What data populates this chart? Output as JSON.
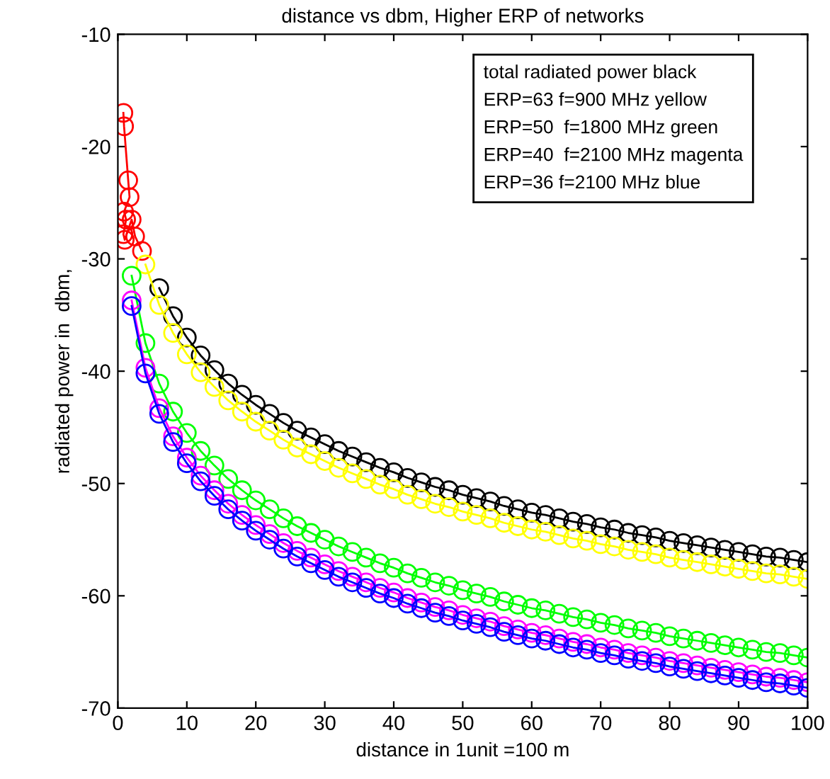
{
  "chart_data": {
    "type": "line",
    "title": "distance vs dbm, Higher ERP of networks",
    "xlabel": "distance in 1unit =100 m",
    "ylabel": "radiated power in  dbm,",
    "annotations": [
      "total radiated power black\nERP=63 f=900 MHz yellow\nERP=50  f=1800 MHz green\nERP=40  f=2100 MHz magenta\nERP=36 f=2100 MHz blue"
    ],
    "xlim": [
      0,
      100
    ],
    "ylim": [
      -70,
      -10
    ],
    "xticks": [
      0,
      10,
      20,
      30,
      40,
      50,
      60,
      70,
      80,
      90,
      100
    ],
    "yticks": [
      -70,
      -60,
      -50,
      -40,
      -30,
      -20,
      -10
    ],
    "marker": "circle",
    "line_style": "solid",
    "series": [
      {
        "color": "#ff0000",
        "x": [
          0.8,
          0.9,
          1.5,
          1.7,
          0.9,
          1.2,
          0.8,
          1.0,
          2.0,
          2.5,
          3.5
        ],
        "values": [
          -17,
          -18.2,
          -23,
          -24.5,
          -25.8,
          -26.5,
          -27.8,
          -28.3,
          -26.5,
          -28,
          -29.3
        ]
      },
      {
        "color": "#000000",
        "x": [
          6,
          8,
          10,
          12,
          14,
          16,
          18,
          20,
          22,
          24,
          26,
          28,
          30,
          32,
          34,
          36,
          38,
          40,
          42,
          44,
          46,
          48,
          50,
          52,
          54,
          56,
          58,
          60,
          62,
          64,
          66,
          68,
          70,
          72,
          74,
          76,
          78,
          80,
          82,
          84,
          86,
          88,
          90,
          92,
          94,
          96,
          98,
          100
        ],
        "values": [
          -32.6,
          -35.1,
          -37,
          -38.6,
          -39.9,
          -41.1,
          -42.1,
          -43,
          -43.8,
          -44.6,
          -45.3,
          -45.9,
          -46.5,
          -47.1,
          -47.6,
          -48.1,
          -48.6,
          -49,
          -49.5,
          -49.9,
          -50.3,
          -50.6,
          -51,
          -51.3,
          -51.6,
          -52,
          -52.3,
          -52.6,
          -52.8,
          -53.1,
          -53.4,
          -53.6,
          -53.9,
          -54.1,
          -54.4,
          -54.6,
          -54.8,
          -55.1,
          -55.3,
          -55.5,
          -55.7,
          -55.9,
          -56.1,
          -56.3,
          -56.5,
          -56.6,
          -56.8,
          -57
        ]
      },
      {
        "color": "#ffff00",
        "x": [
          4,
          6,
          8,
          10,
          12,
          14,
          16,
          18,
          20,
          22,
          24,
          26,
          28,
          30,
          32,
          34,
          36,
          38,
          40,
          42,
          44,
          46,
          48,
          50,
          52,
          54,
          56,
          58,
          60,
          62,
          64,
          66,
          68,
          70,
          72,
          74,
          76,
          78,
          80,
          82,
          84,
          86,
          88,
          90,
          92,
          94,
          96,
          98,
          100
        ],
        "values": [
          -30.5,
          -34.1,
          -36.6,
          -38.5,
          -40.1,
          -41.4,
          -42.6,
          -43.6,
          -44.5,
          -45.3,
          -46.1,
          -46.8,
          -47.4,
          -48,
          -48.6,
          -49.1,
          -49.6,
          -50.1,
          -50.5,
          -51,
          -51.4,
          -51.8,
          -52.1,
          -52.5,
          -52.8,
          -53.1,
          -53.5,
          -53.8,
          -54.1,
          -54.3,
          -54.6,
          -54.9,
          -55.1,
          -55.4,
          -55.6,
          -55.9,
          -56.1,
          -56.3,
          -56.6,
          -56.8,
          -57,
          -57.2,
          -57.4,
          -57.6,
          -57.8,
          -58,
          -58.1,
          -58.3,
          -58.5
        ]
      },
      {
        "color": "#00ff00",
        "x": [
          2,
          4,
          6,
          8,
          10,
          12,
          14,
          16,
          18,
          20,
          22,
          24,
          26,
          28,
          30,
          32,
          34,
          36,
          38,
          40,
          42,
          44,
          46,
          48,
          50,
          52,
          54,
          56,
          58,
          60,
          62,
          64,
          66,
          68,
          70,
          72,
          74,
          76,
          78,
          80,
          82,
          84,
          86,
          88,
          90,
          92,
          94,
          96,
          98,
          100
        ],
        "values": [
          -31.5,
          -37.5,
          -41.1,
          -43.6,
          -45.5,
          -47.1,
          -48.4,
          -49.6,
          -50.6,
          -51.5,
          -52.3,
          -53.1,
          -53.8,
          -54.4,
          -55,
          -55.6,
          -56.1,
          -56.6,
          -57.1,
          -57.5,
          -58,
          -58.4,
          -58.8,
          -59.1,
          -59.5,
          -59.8,
          -60.1,
          -60.5,
          -60.8,
          -61.1,
          -61.3,
          -61.6,
          -61.9,
          -62.1,
          -62.4,
          -62.6,
          -62.9,
          -63.1,
          -63.3,
          -63.6,
          -63.8,
          -64,
          -64.2,
          -64.4,
          -64.6,
          -64.8,
          -65,
          -65.1,
          -65.3,
          -65.5
        ]
      },
      {
        "color": "#ff00ff",
        "x": [
          2,
          4,
          6,
          8,
          10,
          12,
          14,
          16,
          18,
          20,
          22,
          24,
          26,
          28,
          30,
          32,
          34,
          36,
          38,
          40,
          42,
          44,
          46,
          48,
          50,
          52,
          54,
          56,
          58,
          60,
          62,
          64,
          66,
          68,
          70,
          72,
          74,
          76,
          78,
          80,
          82,
          84,
          86,
          88,
          90,
          92,
          94,
          96,
          98,
          100
        ],
        "values": [
          -33.7,
          -39.7,
          -43.3,
          -45.8,
          -47.7,
          -49.3,
          -50.6,
          -51.8,
          -52.8,
          -53.7,
          -54.5,
          -55.3,
          -56,
          -56.6,
          -57.2,
          -57.8,
          -58.3,
          -58.8,
          -59.3,
          -59.7,
          -60.2,
          -60.6,
          -61,
          -61.3,
          -61.7,
          -62,
          -62.3,
          -62.7,
          -63,
          -63.3,
          -63.5,
          -63.8,
          -64.1,
          -64.3,
          -64.6,
          -64.8,
          -65.1,
          -65.3,
          -65.5,
          -65.8,
          -66,
          -66.2,
          -66.4,
          -66.6,
          -66.8,
          -67,
          -67.2,
          -67.3,
          -67.5,
          -67.7
        ]
      },
      {
        "color": "#0000ff",
        "x": [
          2,
          4,
          6,
          8,
          10,
          12,
          14,
          16,
          18,
          20,
          22,
          24,
          26,
          28,
          30,
          32,
          34,
          36,
          38,
          40,
          42,
          44,
          46,
          48,
          50,
          52,
          54,
          56,
          58,
          60,
          62,
          64,
          66,
          68,
          70,
          72,
          74,
          76,
          78,
          80,
          82,
          84,
          86,
          88,
          90,
          92,
          94,
          96,
          98,
          100
        ],
        "values": [
          -34.2,
          -40.2,
          -43.8,
          -46.3,
          -48.2,
          -49.8,
          -51.1,
          -52.3,
          -53.3,
          -54.2,
          -55,
          -55.8,
          -56.5,
          -57.1,
          -57.7,
          -58.3,
          -58.8,
          -59.3,
          -59.8,
          -60.2,
          -60.7,
          -61.1,
          -61.5,
          -61.8,
          -62.2,
          -62.5,
          -62.8,
          -63.2,
          -63.5,
          -63.8,
          -64,
          -64.3,
          -64.6,
          -64.8,
          -65.1,
          -65.3,
          -65.6,
          -65.8,
          -66,
          -66.3,
          -66.5,
          -66.7,
          -66.9,
          -67.1,
          -67.3,
          -67.5,
          -67.7,
          -67.8,
          -68,
          -68.2
        ]
      }
    ]
  }
}
